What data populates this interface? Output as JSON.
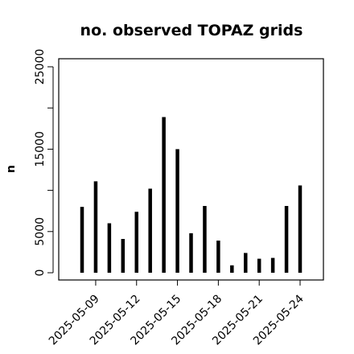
{
  "chart_data": {
    "type": "bar",
    "title": "no. observed TOPAZ grids",
    "xlabel": "",
    "ylabel": "n",
    "ylim": [
      0,
      25000
    ],
    "yticks": [
      0,
      5000,
      10000,
      15000,
      20000,
      25000
    ],
    "yticks_labeled": [
      0,
      5000,
      15000,
      25000
    ],
    "grid": false,
    "legend": "none",
    "xtick_labels": [
      "2025-05-09",
      "2025-05-12",
      "2025-05-15",
      "2025-05-18",
      "2025-05-21",
      "2025-05-24"
    ],
    "highlighted_xtick": "2025-05-15",
    "highlight_color": "#2e8b2e",
    "bar_color": "#000000",
    "series": [
      {
        "x": [
          "2025-05-08",
          "2025-05-09",
          "2025-05-10",
          "2025-05-11",
          "2025-05-12",
          "2025-05-13",
          "2025-05-14",
          "2025-05-15",
          "2025-05-16",
          "2025-05-17",
          "2025-05-18",
          "2025-05-19",
          "2025-05-20",
          "2025-05-21",
          "2025-05-22",
          "2025-05-23",
          "2025-05-24"
        ],
        "values": [
          8000,
          11100,
          6000,
          4100,
          7400,
          10200,
          18900,
          15000,
          4800,
          8100,
          3900,
          900,
          2400,
          1700,
          1800,
          8100,
          10600
        ]
      }
    ]
  }
}
